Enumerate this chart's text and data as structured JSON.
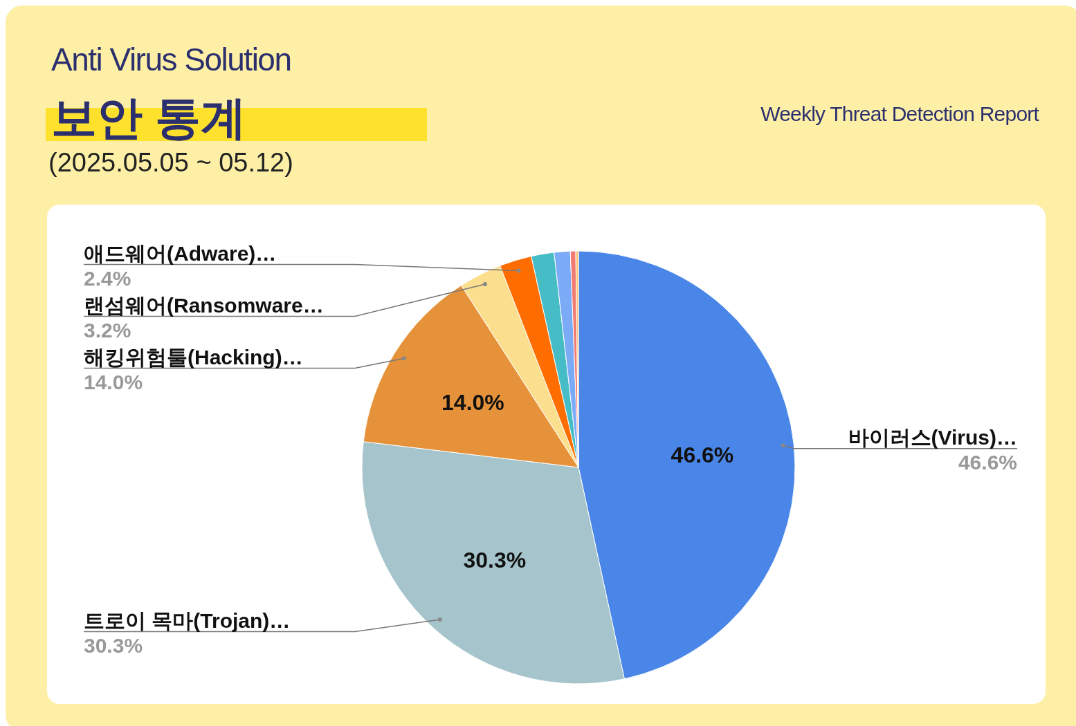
{
  "chart_data": {
    "type": "pie",
    "title": "보안 통계",
    "subtitle": "Weekly Threat Detection Report",
    "annotations": [
      "Anti Virus Solution",
      "(2025.05.05 ~ 05.12)"
    ],
    "categories": [
      "바이러스(Virus)…",
      "트로이 목마(Trojan)…",
      "해킹위험툴(Hacking)…",
      "랜섬웨어(Ransomware…",
      "애드웨어(Adware)…",
      null,
      null,
      null,
      null
    ],
    "values": [
      46.6,
      30.3,
      14.0,
      3.2,
      2.4,
      1.7,
      1.2,
      0.4,
      0.2
    ],
    "colors": [
      "#4a86e8",
      "#a5c4cb",
      "#e6923a",
      "#fbdf8f",
      "#ff6d01",
      "#46bdc6",
      "#7baaf7",
      "#f07b72",
      "#fcc375"
    ],
    "value_labels": [
      "46.6%",
      "30.3%",
      "14.0%",
      "3.2%",
      "2.4%",
      null,
      null,
      null,
      null
    ]
  }
}
